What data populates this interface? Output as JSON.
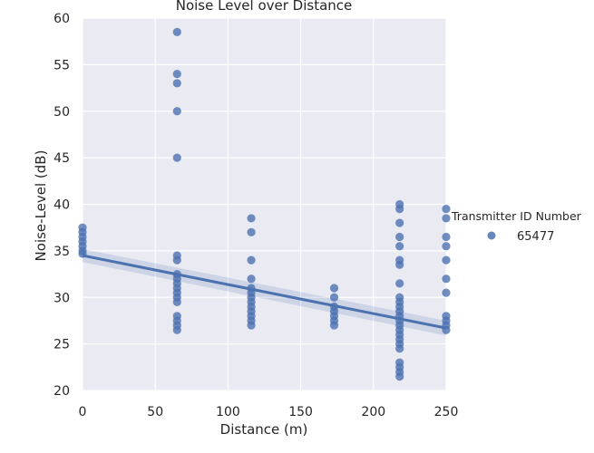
{
  "chart_data": {
    "type": "scatter",
    "title": "Noise Level over Distance",
    "xlabel": "Distance (m)",
    "ylabel": "Noise-Level (dB)",
    "xlim": [
      0,
      250
    ],
    "ylim": [
      20,
      60
    ],
    "xticks": [
      "0",
      "50",
      "100",
      "150",
      "200",
      "250"
    ],
    "yticks": [
      "20",
      "25",
      "30",
      "35",
      "40",
      "45",
      "50",
      "55",
      "60"
    ],
    "grid": true,
    "legend": {
      "title": "Transmitter ID Number",
      "placement": "right",
      "entries": [
        "65477"
      ]
    },
    "colors": {
      "point": "#4c72b0",
      "line": "#4c72b0",
      "background": "#eaeaf2",
      "grid": "#ffffff"
    },
    "series": [
      {
        "name": "65477",
        "points": [
          {
            "x": 0,
            "y": 37.5
          },
          {
            "x": 0,
            "y": 37.0
          },
          {
            "x": 0,
            "y": 36.5
          },
          {
            "x": 0,
            "y": 36.0
          },
          {
            "x": 0,
            "y": 35.5
          },
          {
            "x": 0,
            "y": 35.0
          },
          {
            "x": 0,
            "y": 34.7
          },
          {
            "x": 65,
            "y": 58.5
          },
          {
            "x": 65,
            "y": 54.0
          },
          {
            "x": 65,
            "y": 53.0
          },
          {
            "x": 65,
            "y": 50.0
          },
          {
            "x": 65,
            "y": 45.0
          },
          {
            "x": 65,
            "y": 34.5
          },
          {
            "x": 65,
            "y": 34.0
          },
          {
            "x": 65,
            "y": 32.5
          },
          {
            "x": 65,
            "y": 32.0
          },
          {
            "x": 65,
            "y": 31.5
          },
          {
            "x": 65,
            "y": 31.0
          },
          {
            "x": 65,
            "y": 30.5
          },
          {
            "x": 65,
            "y": 30.0
          },
          {
            "x": 65,
            "y": 29.5
          },
          {
            "x": 65,
            "y": 28.0
          },
          {
            "x": 65,
            "y": 27.5
          },
          {
            "x": 65,
            "y": 27.0
          },
          {
            "x": 65,
            "y": 26.5
          },
          {
            "x": 116,
            "y": 38.5
          },
          {
            "x": 116,
            "y": 37.0
          },
          {
            "x": 116,
            "y": 34.0
          },
          {
            "x": 116,
            "y": 32.0
          },
          {
            "x": 116,
            "y": 31.0
          },
          {
            "x": 116,
            "y": 30.5
          },
          {
            "x": 116,
            "y": 30.0
          },
          {
            "x": 116,
            "y": 29.5
          },
          {
            "x": 116,
            "y": 29.0
          },
          {
            "x": 116,
            "y": 28.5
          },
          {
            "x": 116,
            "y": 28.0
          },
          {
            "x": 116,
            "y": 27.5
          },
          {
            "x": 116,
            "y": 27.0
          },
          {
            "x": 173,
            "y": 31.0
          },
          {
            "x": 173,
            "y": 30.0
          },
          {
            "x": 173,
            "y": 29.0
          },
          {
            "x": 173,
            "y": 28.5
          },
          {
            "x": 173,
            "y": 28.0
          },
          {
            "x": 173,
            "y": 27.5
          },
          {
            "x": 173,
            "y": 27.0
          },
          {
            "x": 218,
            "y": 40.0
          },
          {
            "x": 218,
            "y": 39.5
          },
          {
            "x": 218,
            "y": 38.0
          },
          {
            "x": 218,
            "y": 36.5
          },
          {
            "x": 218,
            "y": 35.5
          },
          {
            "x": 218,
            "y": 34.0
          },
          {
            "x": 218,
            "y": 33.5
          },
          {
            "x": 218,
            "y": 31.5
          },
          {
            "x": 218,
            "y": 30.0
          },
          {
            "x": 218,
            "y": 29.5
          },
          {
            "x": 218,
            "y": 29.0
          },
          {
            "x": 218,
            "y": 28.5
          },
          {
            "x": 218,
            "y": 28.0
          },
          {
            "x": 218,
            "y": 27.5
          },
          {
            "x": 218,
            "y": 27.0
          },
          {
            "x": 218,
            "y": 26.5
          },
          {
            "x": 218,
            "y": 26.0
          },
          {
            "x": 218,
            "y": 25.5
          },
          {
            "x": 218,
            "y": 25.0
          },
          {
            "x": 218,
            "y": 24.5
          },
          {
            "x": 218,
            "y": 23.0
          },
          {
            "x": 218,
            "y": 22.5
          },
          {
            "x": 218,
            "y": 22.0
          },
          {
            "x": 218,
            "y": 21.5
          },
          {
            "x": 250,
            "y": 39.5
          },
          {
            "x": 250,
            "y": 38.5
          },
          {
            "x": 250,
            "y": 36.5
          },
          {
            "x": 250,
            "y": 35.5
          },
          {
            "x": 250,
            "y": 34.0
          },
          {
            "x": 250,
            "y": 32.0
          },
          {
            "x": 250,
            "y": 30.5
          },
          {
            "x": 250,
            "y": 28.0
          },
          {
            "x": 250,
            "y": 27.5
          },
          {
            "x": 250,
            "y": 27.0
          },
          {
            "x": 250,
            "y": 26.5
          }
        ]
      }
    ],
    "regression": {
      "x": [
        0,
        250
      ],
      "y": [
        34.5,
        26.7
      ],
      "ci_upper": [
        35.2,
        27.5
      ],
      "ci_lower": [
        33.8,
        25.9
      ]
    }
  }
}
